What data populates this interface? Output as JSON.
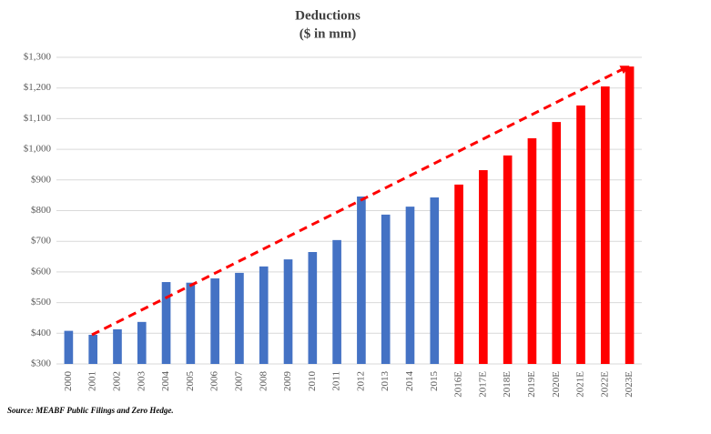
{
  "chart_data": {
    "type": "bar",
    "title": "Deductions",
    "subtitle": "($ in mm)",
    "categories": [
      "2000",
      "2001",
      "2002",
      "2003",
      "2004",
      "2005",
      "2006",
      "2007",
      "2008",
      "2009",
      "2010",
      "2011",
      "2012",
      "2013",
      "2014",
      "2015",
      "2016E",
      "2017E",
      "2018E",
      "2019E",
      "2020E",
      "2021E",
      "2022E",
      "2023E"
    ],
    "values": [
      408,
      395,
      413,
      437,
      567,
      565,
      579,
      597,
      618,
      641,
      665,
      704,
      846,
      787,
      813,
      843,
      885,
      932,
      980,
      1036,
      1089,
      1143,
      1205,
      1270
    ],
    "colors": [
      "#4472c4",
      "#4472c4",
      "#4472c4",
      "#4472c4",
      "#4472c4",
      "#4472c4",
      "#4472c4",
      "#4472c4",
      "#4472c4",
      "#4472c4",
      "#4472c4",
      "#4472c4",
      "#4472c4",
      "#4472c4",
      "#4472c4",
      "#4472c4",
      "#ff0000",
      "#ff0000",
      "#ff0000",
      "#ff0000",
      "#ff0000",
      "#ff0000",
      "#ff0000",
      "#ff0000"
    ],
    "ylim": [
      300,
      1300
    ],
    "yticks": [
      {
        "value": 300,
        "label": "$300"
      },
      {
        "value": 400,
        "label": "$400"
      },
      {
        "value": 500,
        "label": "$500"
      },
      {
        "value": 600,
        "label": "$600"
      },
      {
        "value": 700,
        "label": "$700"
      },
      {
        "value": 800,
        "label": "$800"
      },
      {
        "value": 900,
        "label": "$900"
      },
      {
        "value": 1000,
        "label": "$1,000"
      },
      {
        "value": 1100,
        "label": "$1,100"
      },
      {
        "value": 1200,
        "label": "$1,200"
      },
      {
        "value": 1300,
        "label": "$1,300"
      }
    ],
    "grid": true,
    "source": "Source:  MEABF Public Filings and Zero Hedge."
  }
}
